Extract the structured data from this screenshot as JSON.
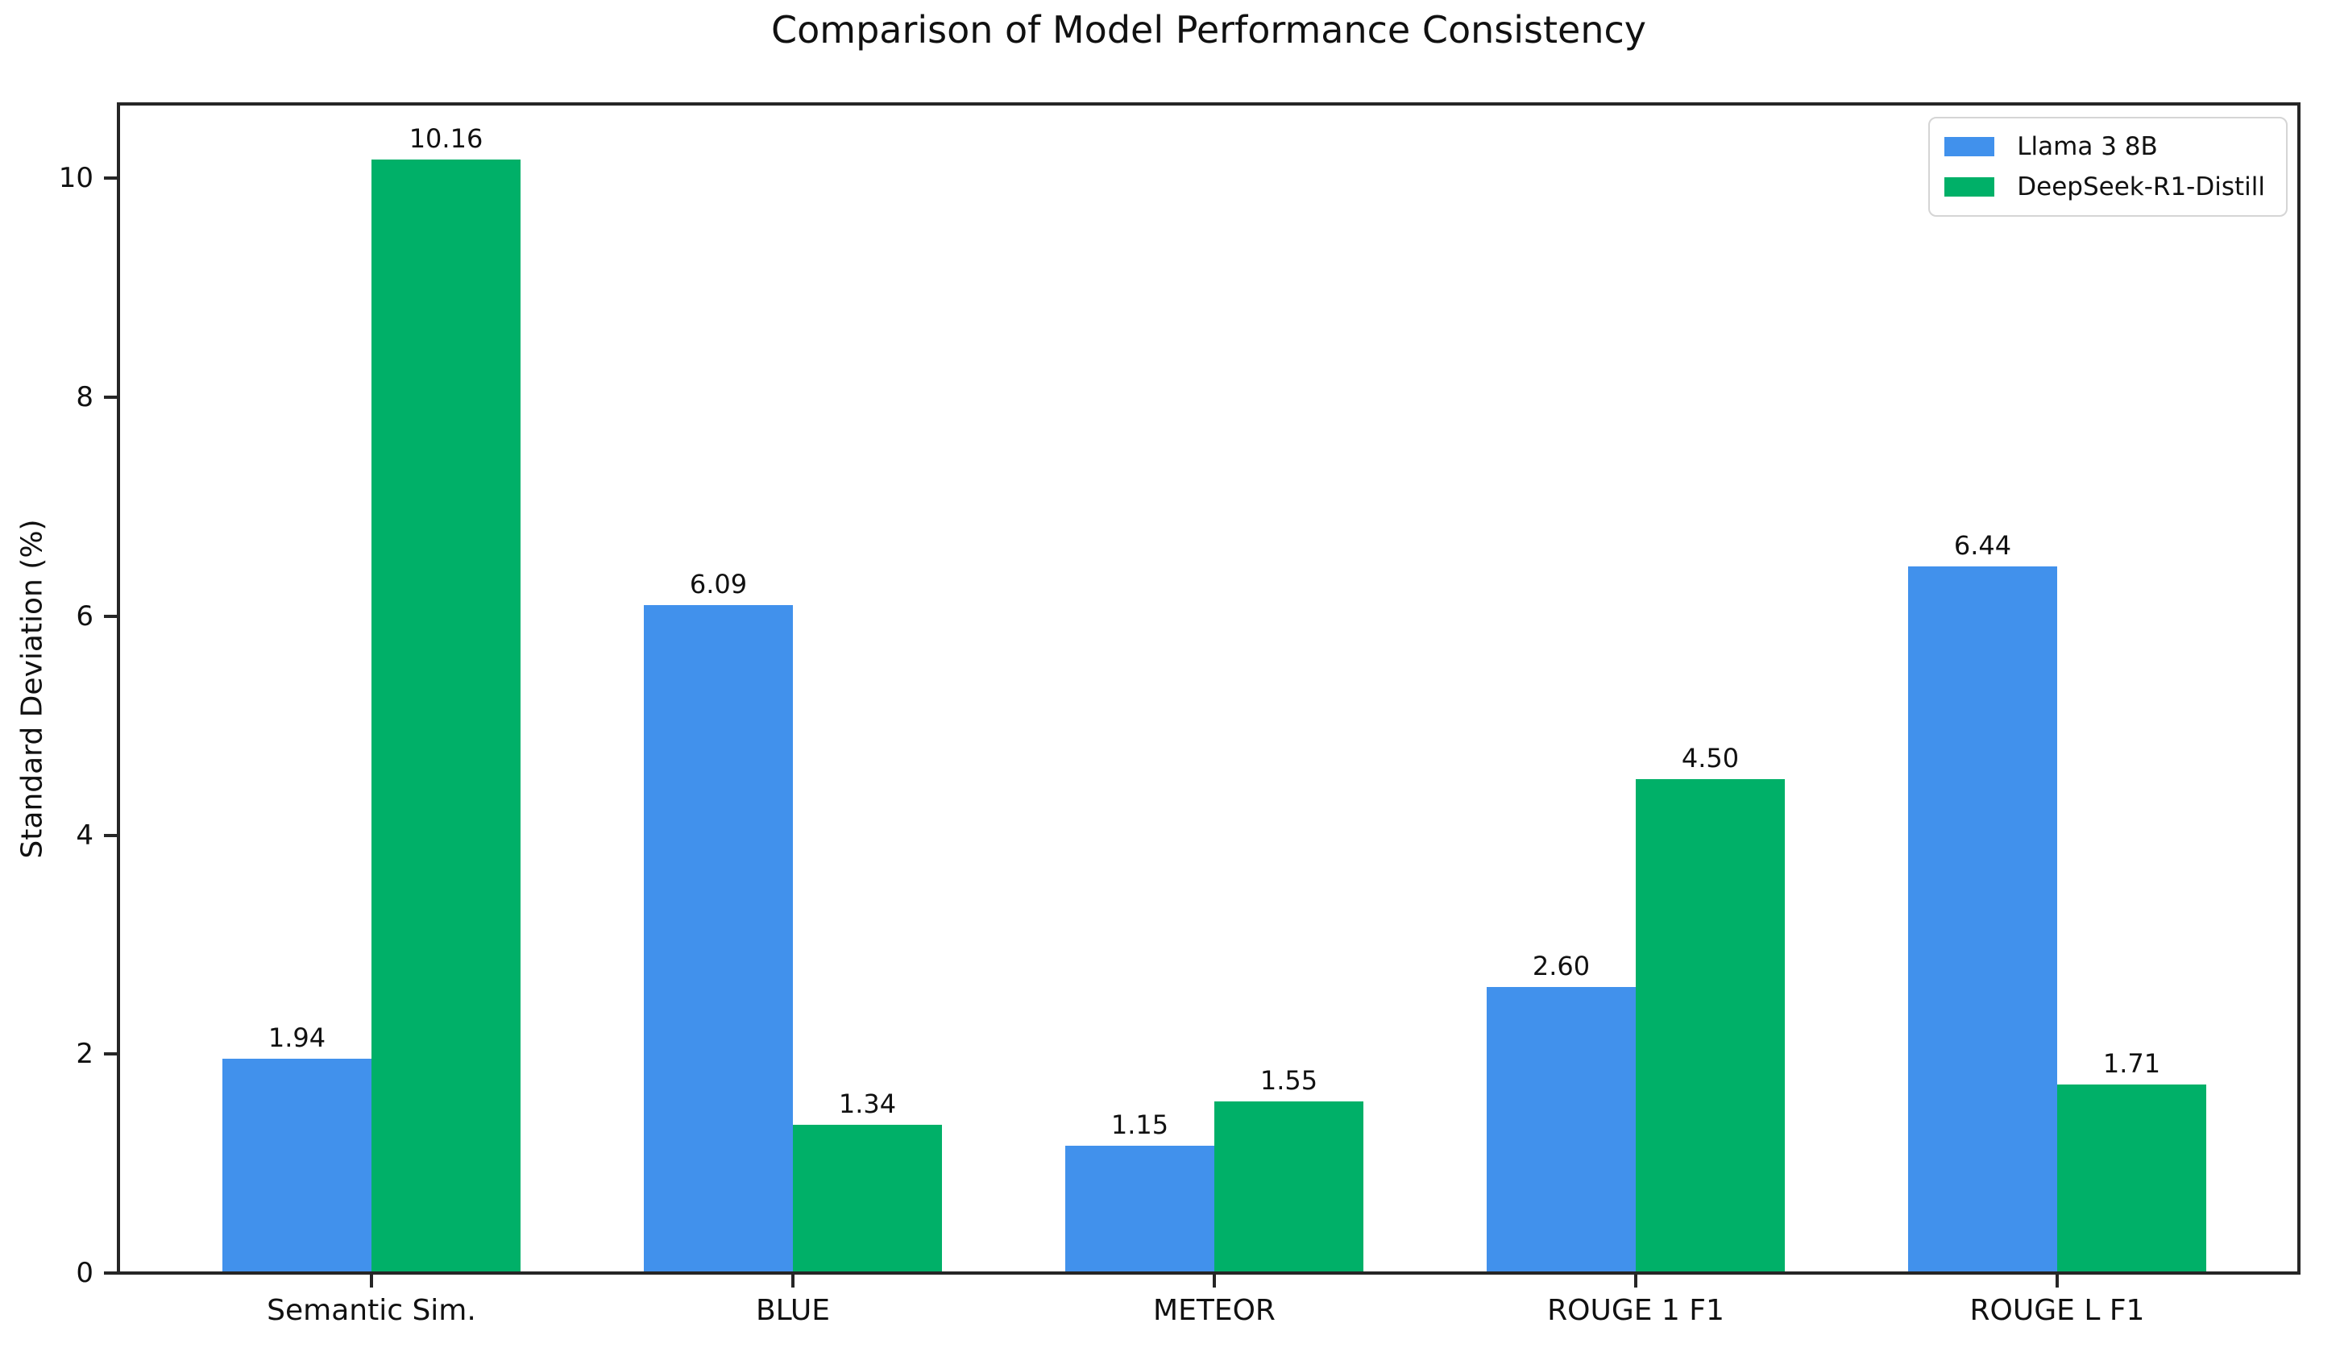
{
  "chart_data": {
    "type": "bar",
    "title": "Comparison of Model Performance Consistency",
    "xlabel": "",
    "ylabel": "Standard Deviation (%)",
    "categories": [
      "Semantic Sim.",
      "BLUE",
      "METEOR",
      "ROUGE 1 F1",
      "ROUGE L F1"
    ],
    "series": [
      {
        "name": "Llama 3 8B",
        "color": "#4191EC",
        "values": [
          1.94,
          6.09,
          1.15,
          2.6,
          6.44
        ],
        "value_labels": [
          "1.94",
          "6.09",
          "1.15",
          "2.60",
          "6.44"
        ]
      },
      {
        "name": "DeepSeek-R1-Distill",
        "color": "#00B068",
        "values": [
          10.16,
          1.34,
          1.55,
          4.5,
          1.71
        ],
        "value_labels": [
          "10.16",
          "1.34",
          "1.55",
          "4.50",
          "1.71"
        ]
      }
    ],
    "yticks": [
      "0",
      "2",
      "4",
      "6",
      "8",
      "10"
    ],
    "ylim": [
      0,
      10.65
    ],
    "grid": false,
    "legend_position": "upper right",
    "colors": {
      "background": "#ffffff",
      "spine": "#262626",
      "text": "#111111",
      "legend_border": "#d5d5d5"
    }
  }
}
